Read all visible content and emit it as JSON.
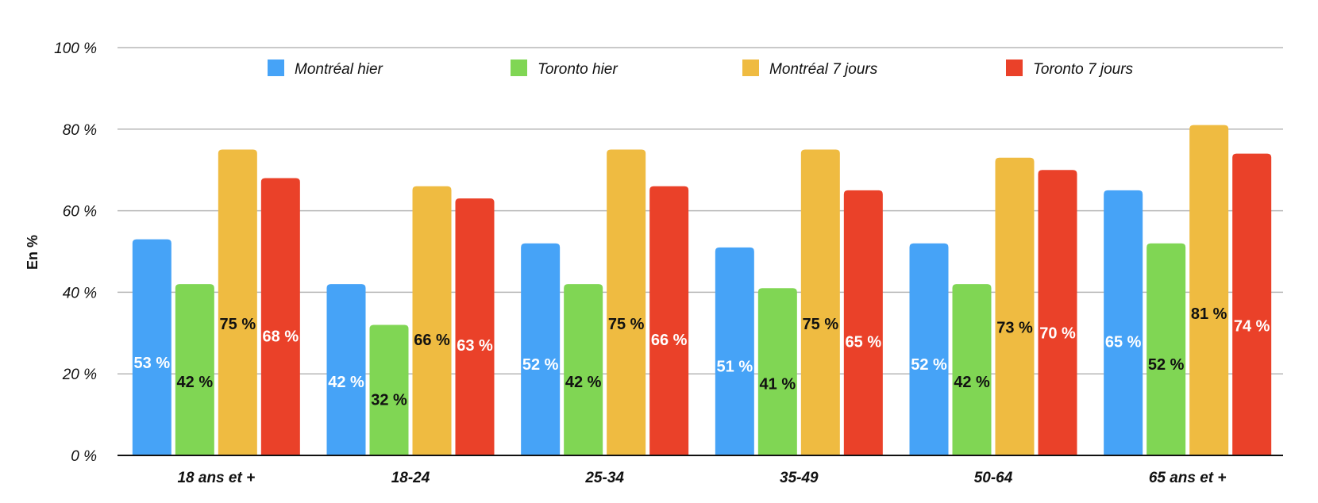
{
  "chart_data": {
    "type": "bar",
    "title": "",
    "xlabel": "",
    "ylabel": "En %",
    "ylim": [
      0,
      100
    ],
    "yticks": [
      0,
      20,
      40,
      60,
      80,
      100
    ],
    "ytick_labels": [
      "0 %",
      "20 %",
      "40 %",
      "60 %",
      "80 %",
      "100 %"
    ],
    "grid": true,
    "legend_position": "top",
    "categories": [
      "18 ans et +",
      "18-24",
      "25-34",
      "35-49",
      "50-64",
      "65 ans et +"
    ],
    "series": [
      {
        "name": "Montréal hier",
        "color": "#46a3f7",
        "label_color": "#ffffff",
        "values": [
          53,
          42,
          52,
          51,
          52,
          65
        ],
        "labels": [
          "53 %",
          "42 %",
          "52 %",
          "51 %",
          "52 %",
          "65 %"
        ]
      },
      {
        "name": "Toronto hier",
        "color": "#80d654",
        "label_color": "#111111",
        "values": [
          42,
          32,
          42,
          41,
          42,
          52
        ],
        "labels": [
          "42 %",
          "32 %",
          "42 %",
          "41 %",
          "42 %",
          "52 %"
        ]
      },
      {
        "name": "Montréal 7 jours",
        "color": "#efbb41",
        "label_color": "#111111",
        "values": [
          75,
          66,
          75,
          75,
          73,
          81
        ],
        "labels": [
          "75 %",
          "66 %",
          "75 %",
          "75 %",
          "73 %",
          "81 %"
        ]
      },
      {
        "name": "Toronto 7 jours",
        "color": "#ea4129",
        "label_color": "#ffffff",
        "values": [
          68,
          63,
          66,
          65,
          70,
          74
        ],
        "labels": [
          "68 %",
          "63 %",
          "66 %",
          "65 %",
          "70 %",
          "74 %"
        ]
      }
    ]
  }
}
